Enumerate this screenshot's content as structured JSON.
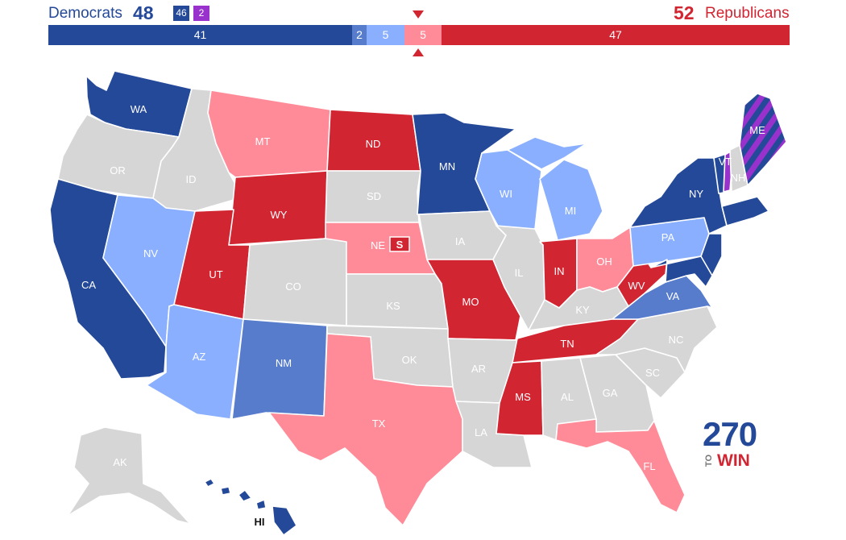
{
  "header": {
    "dem_label": "Democrats",
    "dem_total": "48",
    "dem_badge": "46",
    "ind_badge": "2",
    "rep_total": "52",
    "rep_label": "Republicans"
  },
  "bar": {
    "safe_d": "41",
    "likely_d": "2",
    "lean_d": "5",
    "lean_r": "5",
    "safe_r": "47"
  },
  "colors": {
    "safe_d": "#244999",
    "likely_d": "#577ccc",
    "lean_d": "#8aafff",
    "no_race": "#d6d6d6",
    "lean_r": "#ff8b98",
    "safe_r": "#d22532",
    "independent": "#9932cc"
  },
  "states": {
    "WA": "WA",
    "OR": "OR",
    "CA": "CA",
    "ID": "ID",
    "NV": "NV",
    "MT": "MT",
    "WY": "WY",
    "UT": "UT",
    "AZ": "AZ",
    "CO": "CO",
    "NM": "NM",
    "ND": "ND",
    "SD": "SD",
    "NE": "NE",
    "KS": "KS",
    "OK": "OK",
    "TX": "TX",
    "MN": "MN",
    "IA": "IA",
    "MO": "MO",
    "AR": "AR",
    "LA": "LA",
    "WI": "WI",
    "IL": "IL",
    "MI": "MI",
    "IN": "IN",
    "OH": "OH",
    "KY": "KY",
    "TN": "TN",
    "MS": "MS",
    "AL": "AL",
    "GA": "GA",
    "FL": "FL",
    "SC": "SC",
    "NC": "NC",
    "VA": "VA",
    "WV": "WV",
    "PA": "PA",
    "NY": "NY",
    "VT": "VT",
    "NH": "NH",
    "ME": "ME",
    "AK": "AK",
    "HI": "HI"
  },
  "special_marker": "S",
  "logo": {
    "number": "270",
    "to": "TO",
    "win": "WIN"
  }
}
